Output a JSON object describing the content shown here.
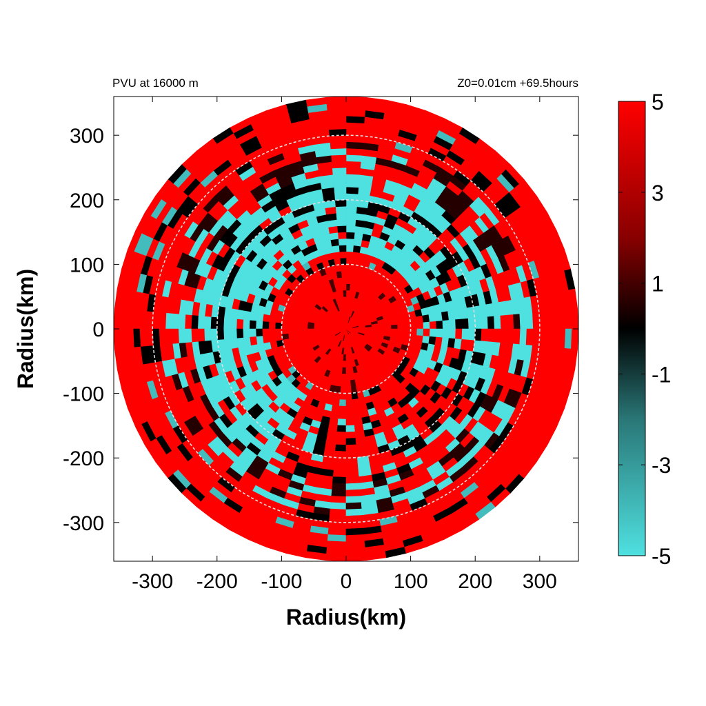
{
  "chart_data": {
    "type": "heatmap",
    "plot_type": "polar field (radius-radius map)",
    "title_left": "PVU at 16000 m",
    "title_right": "Z0=0.01cm  +69.5hours",
    "xlabel": "Radius(km)",
    "ylabel": "Radius(km)",
    "xlim": [
      -360,
      360
    ],
    "ylim": [
      -360,
      360
    ],
    "x_ticks": [
      -300,
      -200,
      -100,
      0,
      100,
      200,
      300
    ],
    "y_ticks": [
      300,
      200,
      100,
      0,
      -100,
      -200,
      -300
    ],
    "x_tick_labels": [
      "-300",
      "-200",
      "-100",
      "0",
      "100",
      "200",
      "300"
    ],
    "y_tick_labels": [
      "300",
      "200",
      "100",
      "0",
      "-100",
      "-200",
      "-300"
    ],
    "data_radius_km": 360,
    "reference_circles_km": [
      100,
      200,
      300
    ],
    "colorbar": {
      "min": -5,
      "max": 5,
      "tick_labels": [
        "5",
        "3",
        "1",
        "-1",
        "-3",
        "-5"
      ],
      "colors": {
        "negative": "#4fe0e0",
        "zero": "#000000",
        "positive": "#ff0000"
      }
    },
    "field_summary": {
      "inner_core_max_km": 100,
      "inner_core_sign": "positive",
      "cyan_band_range_km": [
        120,
        240
      ],
      "outer_sign": "positive"
    }
  }
}
